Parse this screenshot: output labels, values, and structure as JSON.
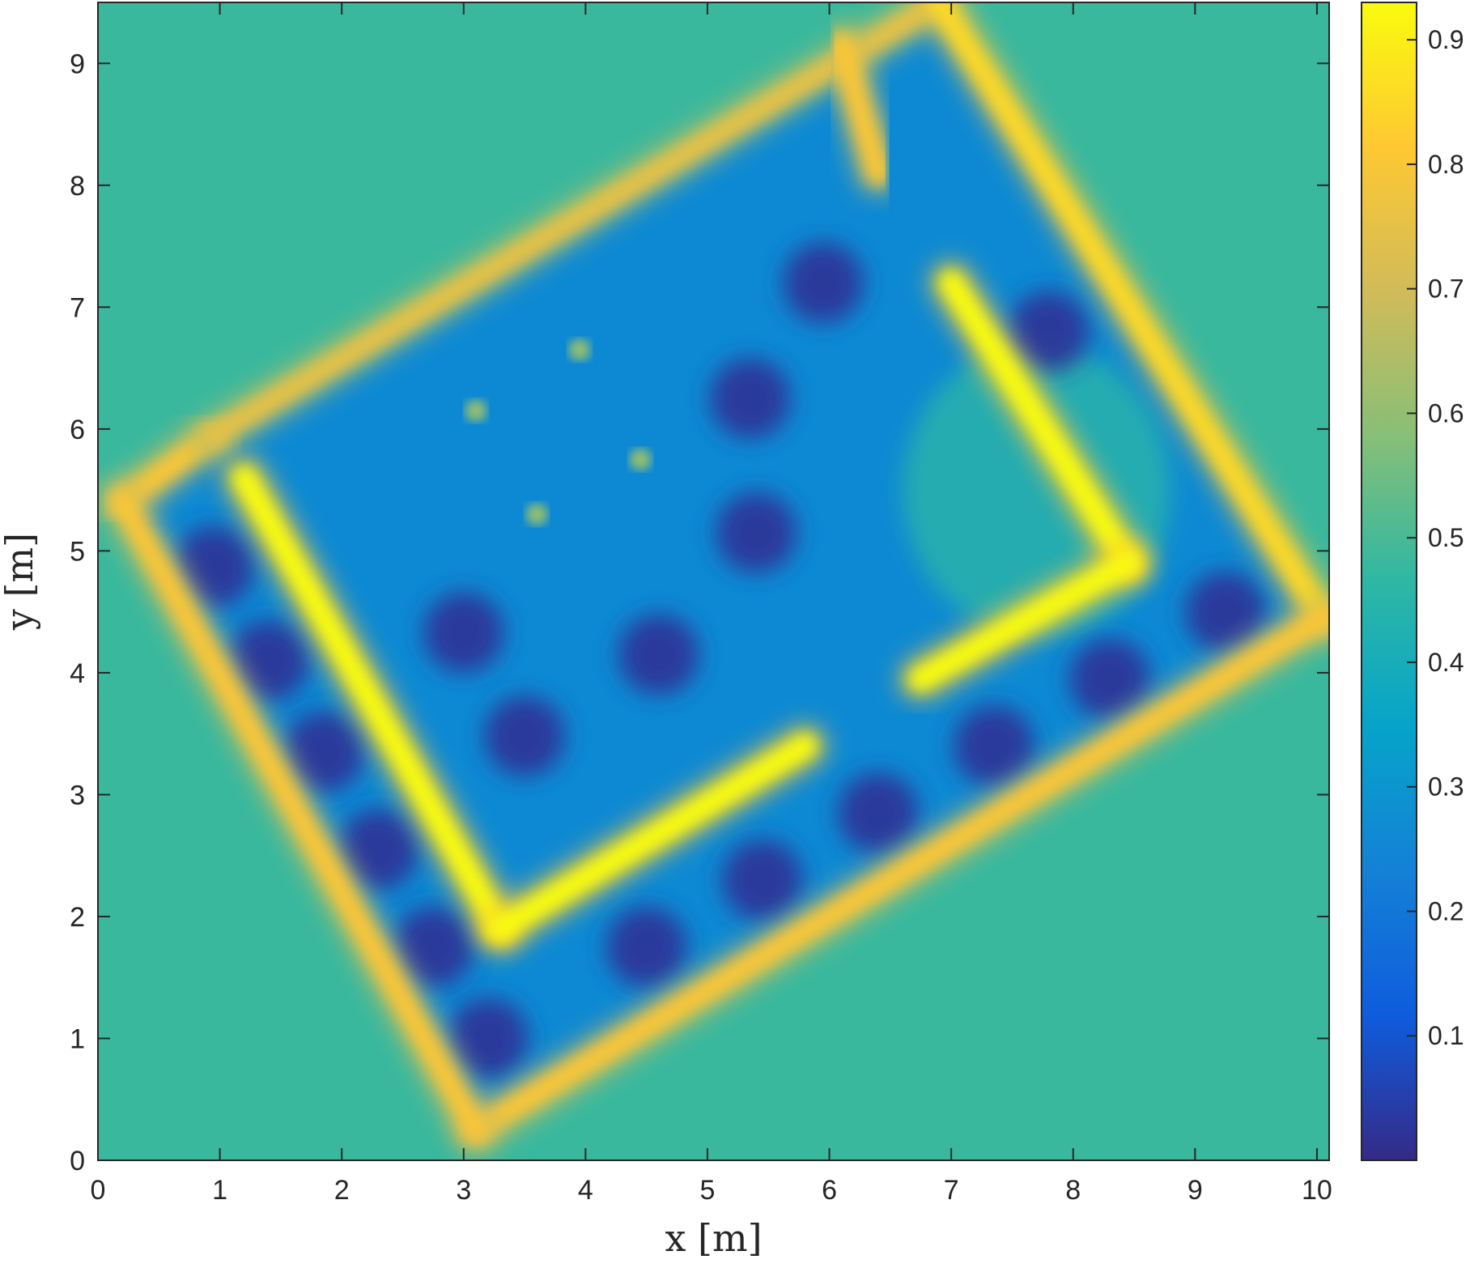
{
  "chart_data": {
    "type": "heatmap",
    "title": "",
    "xlabel": "x [m]",
    "ylabel": "y [m]",
    "xlim": [
      0,
      10.1
    ],
    "ylim": [
      0,
      9.5
    ],
    "x_ticks": [
      0,
      1,
      2,
      3,
      4,
      5,
      6,
      7,
      8,
      9,
      10
    ],
    "y_ticks": [
      0,
      1,
      2,
      3,
      4,
      5,
      6,
      7,
      8,
      9
    ],
    "grid": false,
    "colormap": "parula",
    "colorbar": {
      "range": [
        0,
        0.93
      ],
      "ticks": [
        0.1,
        0.2,
        0.3,
        0.4,
        0.5,
        0.6,
        0.7,
        0.8,
        0.9
      ],
      "stops": [
        "#352a87",
        "#0f5cdd",
        "#1481d6",
        "#06a4ca",
        "#2eb7a4",
        "#87bf77",
        "#d1bb59",
        "#fec832",
        "#f9fb0e"
      ]
    },
    "background_value": 0.48,
    "room_outline": [
      [
        0.2,
        5.4
      ],
      [
        0.95,
        5.95
      ],
      [
        6.9,
        9.5
      ],
      [
        10.05,
        4.45
      ],
      [
        3.1,
        0.25
      ]
    ],
    "interior_value": 0.26,
    "walls": [
      {
        "from": [
          0.2,
          5.4
        ],
        "to": [
          0.95,
          5.95
        ],
        "value": 0.8
      },
      {
        "from": [
          0.95,
          5.95
        ],
        "to": [
          6.9,
          9.5
        ],
        "value": 0.75
      },
      {
        "from": [
          6.9,
          9.5
        ],
        "to": [
          10.05,
          4.45
        ],
        "value": 0.85
      },
      {
        "from": [
          10.05,
          4.45
        ],
        "to": [
          3.1,
          0.25
        ],
        "value": 0.8
      },
      {
        "from": [
          3.1,
          0.25
        ],
        "to": [
          0.2,
          5.4
        ],
        "value": 0.8
      },
      {
        "from": [
          1.2,
          5.6
        ],
        "to": [
          3.3,
          1.9
        ],
        "value": 0.93
      },
      {
        "from": [
          3.3,
          1.9
        ],
        "to": [
          5.8,
          3.4
        ],
        "value": 0.93
      },
      {
        "from": [
          7.0,
          7.2
        ],
        "to": [
          8.45,
          4.9
        ],
        "value": 0.93
      },
      {
        "from": [
          8.45,
          4.9
        ],
        "to": [
          6.75,
          3.95
        ],
        "value": 0.93
      },
      {
        "from": [
          6.4,
          8.1
        ],
        "to": [
          6.1,
          9.15
        ],
        "value": 0.8
      }
    ],
    "low_regions": [
      {
        "x": 0.95,
        "y": 4.87,
        "value": 0.02
      },
      {
        "x": 1.4,
        "y": 4.1,
        "value": 0.02
      },
      {
        "x": 1.85,
        "y": 3.35,
        "value": 0.02
      },
      {
        "x": 2.3,
        "y": 2.55,
        "value": 0.02
      },
      {
        "x": 2.75,
        "y": 1.75,
        "value": 0.02
      },
      {
        "x": 3.2,
        "y": 1.0,
        "value": 0.02
      },
      {
        "x": 3.0,
        "y": 4.33,
        "value": 0.02
      },
      {
        "x": 3.5,
        "y": 3.48,
        "value": 0.02
      },
      {
        "x": 4.6,
        "y": 4.15,
        "value": 0.02
      },
      {
        "x": 5.4,
        "y": 5.15,
        "value": 0.02
      },
      {
        "x": 5.35,
        "y": 6.25,
        "value": 0.02
      },
      {
        "x": 5.95,
        "y": 7.2,
        "value": 0.02
      },
      {
        "x": 4.5,
        "y": 1.75,
        "value": 0.02
      },
      {
        "x": 5.45,
        "y": 2.3,
        "value": 0.02
      },
      {
        "x": 6.4,
        "y": 2.85,
        "value": 0.02
      },
      {
        "x": 7.35,
        "y": 3.4,
        "value": 0.02
      },
      {
        "x": 8.3,
        "y": 3.95,
        "value": 0.02
      },
      {
        "x": 9.25,
        "y": 4.5,
        "value": 0.02
      },
      {
        "x": 7.8,
        "y": 6.8,
        "value": 0.02
      }
    ],
    "bright_spots": [
      {
        "x": 3.95,
        "y": 6.65,
        "value": 0.6
      },
      {
        "x": 3.1,
        "y": 6.15,
        "value": 0.6
      },
      {
        "x": 4.45,
        "y": 5.75,
        "value": 0.6
      },
      {
        "x": 3.6,
        "y": 5.3,
        "value": 0.6
      }
    ],
    "open_region": {
      "x": 7.7,
      "y": 5.5,
      "value": 0.45
    }
  }
}
